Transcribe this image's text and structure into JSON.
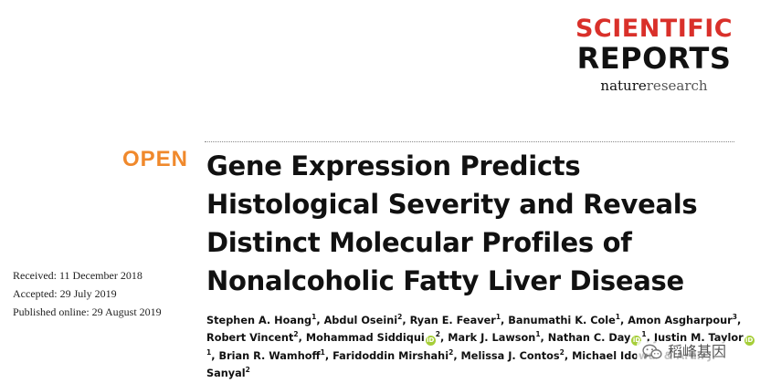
{
  "journal": {
    "name_line1": "SCIENTIFIC",
    "name_line2": "REPORTS",
    "publisher_part1": "nature",
    "publisher_part2": "research",
    "accent_color": "#d9302a"
  },
  "open_access": {
    "label": "OPEN",
    "color": "#f0892c"
  },
  "article": {
    "title_lines": [
      "Gene Expression Predicts",
      "Histological Severity and Reveals",
      "Distinct Molecular Profiles of",
      "Nonalcoholic Fatty Liver Disease"
    ]
  },
  "dates": {
    "received": "Received: 11 December 2018",
    "accepted": "Accepted: 29 July 2019",
    "published": "Published online: 29 August 2019"
  },
  "authors": [
    {
      "name": "Stephen A. Hoang",
      "aff": "1",
      "orcid": false,
      "sep": ","
    },
    {
      "name": "Abdul Oseini",
      "aff": "2",
      "orcid": false,
      "sep": ","
    },
    {
      "name": "Ryan E. Feaver",
      "aff": "1",
      "orcid": false,
      "sep": ","
    },
    {
      "name": "Banumathi K. Cole",
      "aff": "1",
      "orcid": false,
      "sep": ","
    },
    {
      "name": "Amon Asgharpour",
      "aff": "3",
      "orcid": false,
      "sep": ","
    },
    {
      "name": "Robert Vincent",
      "aff": "2",
      "orcid": false,
      "sep": ","
    },
    {
      "name": "Mohammad Siddiqui",
      "aff": "2",
      "orcid": true,
      "sep": ","
    },
    {
      "name": "Mark J. Lawson",
      "aff": "1",
      "orcid": false,
      "sep": ","
    },
    {
      "name": "Nathan C. Day",
      "aff": "1",
      "orcid": true,
      "sep": ","
    },
    {
      "name": "Justin M. Taylor",
      "aff": "1",
      "orcid": true,
      "sep": ","
    },
    {
      "name": "Brian R. Wamhoff",
      "aff": "1",
      "orcid": false,
      "sep": ","
    },
    {
      "name": "Faridoddin Mirshahi",
      "aff": "2",
      "orcid": false,
      "sep": ","
    },
    {
      "name": "Melissa J. Contos",
      "aff": "2",
      "orcid": false,
      "sep": ","
    },
    {
      "name": "Michael Idowu",
      "aff": "2",
      "orcid": false,
      "sep": " &"
    },
    {
      "name": "Arun J. Sanyal",
      "aff": "2",
      "orcid": false,
      "sep": ""
    }
  ],
  "orcid_icon": {
    "name": "orcid-icon",
    "glyph": "iD",
    "color": "#a6ce39"
  },
  "watermark": {
    "icon": "wechat-icon",
    "text": "稻峰基因"
  }
}
